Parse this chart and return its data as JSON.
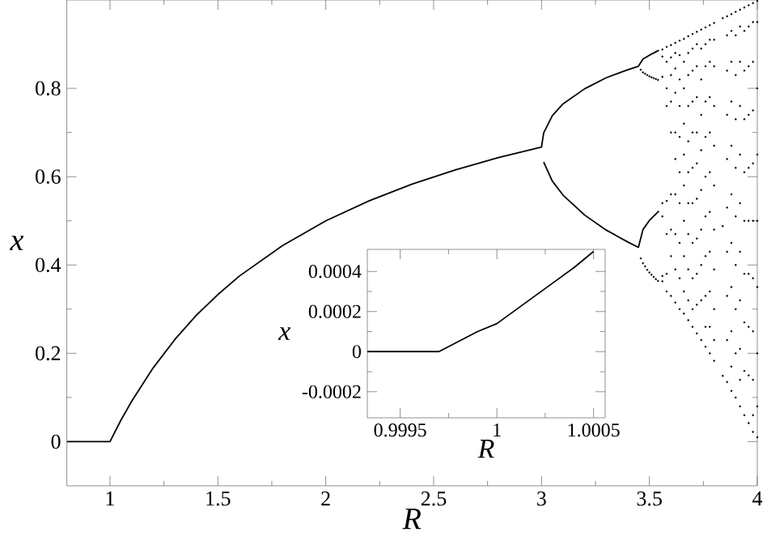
{
  "chart_data": [
    {
      "type": "line",
      "xlabel": "R",
      "ylabel": "x",
      "xlim": [
        0.8,
        4
      ],
      "ylim": [
        -0.1,
        1
      ],
      "xticks": [
        1,
        1.5,
        2,
        2.5,
        3,
        3.5,
        4
      ],
      "yticks": [
        0,
        0.2,
        0.4,
        0.6,
        0.8
      ],
      "series": [
        {
          "color": "#000000",
          "marker": "none",
          "x": [
            0.8,
            1,
            1.05,
            1.1,
            1.2,
            1.3,
            1.4,
            1.5,
            1.6,
            1.8,
            2,
            2.2,
            2.4,
            2.6,
            2.8,
            3,
            3.01,
            3.05,
            3.1,
            3.2,
            3.3,
            3.4,
            3.449,
            3.47,
            3.5,
            3.544
          ],
          "values": [
            0,
            0,
            0.048,
            0.091,
            0.167,
            0.231,
            0.286,
            0.333,
            0.375,
            0.444,
            0.5,
            0.545,
            0.583,
            0.615,
            0.643,
            0.667,
            0.699,
            0.738,
            0.765,
            0.799,
            0.824,
            0.842,
            0.85,
            0.866,
            0.875,
            0.886
          ]
        },
        {
          "color": "#000000",
          "marker": "none",
          "x": [
            3.01,
            3.05,
            3.1,
            3.2,
            3.3,
            3.4,
            3.449,
            3.47,
            3.5,
            3.544
          ],
          "values": [
            0.633,
            0.59,
            0.558,
            0.513,
            0.479,
            0.452,
            0.44,
            0.48,
            0.501,
            0.522
          ]
        },
        {
          "type": "scatter",
          "color": "#000000",
          "marker": "circle",
          "x": [
            3.46,
            3.46,
            3.47,
            3.47,
            3.48,
            3.48,
            3.49,
            3.49,
            3.5,
            3.5,
            3.51,
            3.51,
            3.52,
            3.52,
            3.53,
            3.53,
            3.54,
            3.54,
            3.56,
            3.56,
            3.56,
            3.56,
            3.56,
            3.56,
            3.56,
            3.58,
            3.58,
            3.58,
            3.58,
            3.58,
            3.58,
            3.58,
            3.58,
            3.6,
            3.6,
            3.6,
            3.6,
            3.6,
            3.6,
            3.6,
            3.6,
            3.6,
            3.62,
            3.62,
            3.62,
            3.62,
            3.62,
            3.62,
            3.62,
            3.62,
            3.62,
            3.62,
            3.64,
            3.64,
            3.64,
            3.64,
            3.64,
            3.64,
            3.64,
            3.64,
            3.64,
            3.64,
            3.66,
            3.66,
            3.66,
            3.66,
            3.66,
            3.66,
            3.66,
            3.66,
            3.66,
            3.66,
            3.68,
            3.68,
            3.68,
            3.68,
            3.68,
            3.68,
            3.68,
            3.68,
            3.68,
            3.68,
            3.68,
            3.7,
            3.7,
            3.7,
            3.7,
            3.7,
            3.7,
            3.7,
            3.7,
            3.7,
            3.7,
            3.7,
            3.72,
            3.72,
            3.72,
            3.72,
            3.72,
            3.72,
            3.72,
            3.72,
            3.72,
            3.72,
            3.72,
            3.74,
            3.74,
            3.74,
            3.74,
            3.74,
            3.74,
            3.74,
            3.74,
            3.74,
            3.74,
            3.76,
            3.76,
            3.76,
            3.76,
            3.76,
            3.76,
            3.76,
            3.76,
            3.76,
            3.76,
            3.76,
            3.78,
            3.78,
            3.78,
            3.78,
            3.78,
            3.78,
            3.78,
            3.78,
            3.78,
            3.78,
            3.78,
            3.8,
            3.8,
            3.8,
            3.8,
            3.8,
            3.8,
            3.8,
            3.8,
            3.8,
            3.8,
            3.8,
            3.84,
            3.84,
            3.84,
            3.86,
            3.86,
            3.86,
            3.86,
            3.86,
            3.86,
            3.86,
            3.86,
            3.86,
            3.86,
            3.88,
            3.88,
            3.88,
            3.88,
            3.88,
            3.88,
            3.88,
            3.88,
            3.88,
            3.88,
            3.88,
            3.9,
            3.9,
            3.9,
            3.9,
            3.9,
            3.9,
            3.9,
            3.9,
            3.9,
            3.9,
            3.92,
            3.92,
            3.92,
            3.92,
            3.92,
            3.92,
            3.92,
            3.92,
            3.92,
            3.92,
            3.92,
            3.94,
            3.94,
            3.94,
            3.94,
            3.94,
            3.94,
            3.94,
            3.94,
            3.94,
            3.94,
            3.96,
            3.96,
            3.96,
            3.96,
            3.96,
            3.96,
            3.96,
            3.96,
            3.96,
            3.96,
            3.98,
            3.98,
            3.98,
            3.98,
            3.98,
            3.98,
            3.98,
            3.98,
            3.98,
            3.98,
            3.98,
            4,
            4,
            4,
            4,
            4,
            4,
            4,
            4,
            4
          ],
          "values": [
            0.842,
            0.415,
            0.836,
            0.404,
            0.833,
            0.397,
            0.83,
            0.389,
            0.827,
            0.383,
            0.825,
            0.378,
            0.823,
            0.373,
            0.821,
            0.368,
            0.819,
            0.364,
            0.888,
            0.826,
            0.872,
            0.51,
            0.54,
            0.363,
            0.375,
            0.894,
            0.86,
            0.8,
            0.76,
            0.545,
            0.47,
            0.38,
            0.34,
            0.898,
            0.87,
            0.83,
            0.77,
            0.7,
            0.56,
            0.48,
            0.42,
            0.33,
            0.903,
            0.88,
            0.845,
            0.79,
            0.7,
            0.64,
            0.56,
            0.47,
            0.39,
            0.315,
            0.908,
            0.875,
            0.82,
            0.76,
            0.69,
            0.61,
            0.54,
            0.45,
            0.37,
            0.3,
            0.912,
            0.86,
            0.8,
            0.72,
            0.65,
            0.58,
            0.5,
            0.42,
            0.34,
            0.29,
            0.918,
            0.88,
            0.83,
            0.76,
            0.68,
            0.61,
            0.54,
            0.47,
            0.39,
            0.32,
            0.275,
            0.923,
            0.89,
            0.84,
            0.77,
            0.7,
            0.62,
            0.54,
            0.45,
            0.37,
            0.3,
            0.26,
            0.928,
            0.9,
            0.85,
            0.78,
            0.7,
            0.63,
            0.55,
            0.46,
            0.38,
            0.31,
            0.245,
            0.933,
            0.89,
            0.82,
            0.74,
            0.66,
            0.57,
            0.48,
            0.4,
            0.32,
            0.23,
            0.938,
            0.9,
            0.85,
            0.77,
            0.69,
            0.6,
            0.51,
            0.42,
            0.33,
            0.26,
            0.215,
            0.943,
            0.91,
            0.86,
            0.78,
            0.7,
            0.61,
            0.52,
            0.43,
            0.34,
            0.26,
            0.2,
            0.948,
            0.91,
            0.85,
            0.76,
            0.67,
            0.58,
            0.48,
            0.39,
            0.3,
            0.23,
            0.183,
            0.959,
            0.488,
            0.149,
            0.963,
            0.92,
            0.84,
            0.74,
            0.64,
            0.53,
            0.43,
            0.33,
            0.23,
            0.135,
            0.968,
            0.93,
            0.86,
            0.77,
            0.67,
            0.56,
            0.45,
            0.35,
            0.25,
            0.17,
            0.115,
            0.973,
            0.92,
            0.83,
            0.73,
            0.62,
            0.51,
            0.4,
            0.3,
            0.2,
            0.1,
            0.978,
            0.94,
            0.86,
            0.76,
            0.65,
            0.54,
            0.43,
            0.32,
            0.21,
            0.14,
            0.08,
            0.983,
            0.93,
            0.84,
            0.73,
            0.61,
            0.5,
            0.38,
            0.27,
            0.16,
            0.06,
            0.988,
            0.94,
            0.85,
            0.74,
            0.62,
            0.5,
            0.38,
            0.26,
            0.15,
            0.042,
            0.993,
            0.95,
            0.86,
            0.75,
            0.63,
            0.5,
            0.37,
            0.25,
            0.14,
            0.06,
            0.022,
            0.998,
            0.95,
            0.8,
            0.65,
            0.5,
            0.35,
            0.2,
            0.08,
            0.01
          ]
        }
      ]
    },
    {
      "type": "line",
      "xlabel": "R",
      "ylabel": "x",
      "xlim": [
        0.99933,
        1.00056
      ],
      "ylim": [
        -0.00033,
        0.00051
      ],
      "xticks": [
        0.9995,
        1,
        1.0005
      ],
      "yticks": [
        -0.0002,
        0,
        0.0002,
        0.0004
      ],
      "series": [
        {
          "color": "#000000",
          "marker": "none",
          "x": [
            0.99933,
            0.9995,
            0.9996,
            0.9997,
            0.9999,
            1,
            1.0001,
            1.0002,
            1.0003,
            1.0004,
            1.0005
          ],
          "values": [
            0,
            0,
            0,
            0,
            0.0001,
            0.00014,
            0.00021,
            0.00028,
            0.00035,
            0.00042,
            0.0005
          ]
        }
      ]
    }
  ]
}
